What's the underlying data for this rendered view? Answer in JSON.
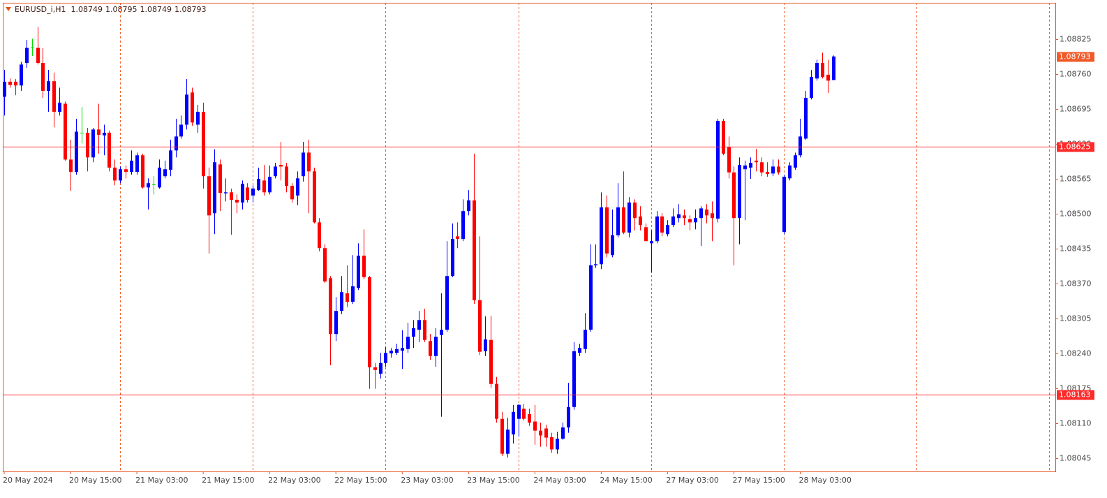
{
  "chart_data": {
    "type": "candlestick",
    "title": "EURUSD_i,H1",
    "categories": [
      "20 May 2024",
      null,
      null,
      null,
      null,
      null,
      null,
      null,
      null,
      null,
      null,
      null,
      "20 May 15:00",
      null,
      null,
      null,
      null,
      null,
      null,
      null,
      null,
      null,
      null,
      null,
      "21 May 03:00",
      null,
      null,
      null,
      null,
      null,
      null,
      null,
      null,
      null,
      null,
      null,
      "21 May 15:00",
      null,
      null,
      null,
      null,
      null,
      null,
      null,
      null,
      null,
      null,
      null,
      "22 May 03:00",
      null,
      null,
      null,
      null,
      null,
      null,
      null,
      null,
      null,
      null,
      null,
      "22 May 15:00",
      null,
      null,
      null,
      null,
      null,
      null,
      null,
      null,
      null,
      null,
      null,
      "23 May 03:00",
      null,
      null,
      null,
      null,
      null,
      null,
      null,
      null,
      null,
      null,
      null,
      "23 May 15:00",
      null,
      null,
      null,
      null,
      null,
      null,
      null,
      null,
      null,
      null,
      null,
      "24 May 03:00",
      null,
      null,
      null,
      null,
      null,
      null,
      null,
      null,
      null,
      null,
      null,
      "24 May 15:00",
      null,
      null,
      null,
      null,
      null,
      null,
      null,
      null,
      null,
      null,
      null,
      "27 May 03:00",
      null,
      null,
      null,
      null,
      null,
      null,
      null,
      null,
      null,
      null,
      null,
      "27 May 15:00",
      null,
      null,
      null,
      null,
      null,
      null,
      null,
      null,
      null,
      null,
      null,
      "28 May 03:00",
      null,
      null,
      null,
      null,
      null,
      null
    ],
    "open": [
      1.08718,
      1.08746,
      1.08746,
      1.08739,
      1.08781,
      1.08811,
      1.08809,
      1.08781,
      1.08729,
      1.08747,
      1.0869,
      1.08705,
      1.08601,
      1.08578,
      1.08651,
      1.08651,
      1.08605,
      1.08657,
      1.08646,
      1.08651,
      1.08586,
      1.08562,
      1.08583,
      1.08578,
      1.08578,
      1.08609,
      1.08549,
      1.08555,
      1.08549,
      1.0857,
      1.08582,
      1.08618,
      1.08644,
      1.08666,
      1.08726,
      1.08666,
      1.0869,
      1.0857,
      1.08501,
      1.08592,
      1.08538,
      1.0854,
      1.08526,
      1.08521,
      1.08549,
      1.08534,
      1.08544,
      1.08562,
      1.0854,
      1.0857,
      1.08591,
      1.08588,
      1.08552,
      1.08534,
      1.0857,
      1.08614,
      1.08579,
      1.08484,
      1.08436,
      1.0838,
      1.08276,
      1.08319,
      1.08352,
      1.08336,
      1.08362,
      1.08422,
      1.08382,
      1.08214,
      1.08202,
      1.08222,
      1.0824,
      1.08241,
      1.08245,
      1.08248,
      1.08271,
      1.08284,
      1.08302,
      1.08263,
      1.08235,
      1.08274,
      1.08284,
      1.08384,
      1.08458,
      1.08453,
      1.08505,
      1.08525,
      1.08339,
      1.08244,
      1.08265,
      1.08183,
      1.08118,
      1.08053,
      1.08089,
      1.08118,
      1.08137,
      1.08127,
      1.08113,
      1.08096,
      1.081,
      1.08084,
      1.08061,
      1.08081,
      1.08102,
      1.0814,
      1.08241,
      1.08248,
      1.08284,
      1.08404,
      1.08406,
      1.08512,
      1.08423,
      1.0846,
      1.08512,
      1.08465,
      1.08521,
      1.08495,
      1.08475,
      1.08445,
      1.08449,
      1.08495,
      1.08462,
      1.08479,
      1.08492,
      1.08497,
      1.0849,
      1.08484,
      1.08492,
      1.08508,
      1.08501,
      1.08491,
      1.08673,
      1.08625,
      1.08577,
      1.08492,
      1.08583,
      1.08586,
      1.08599,
      1.08596,
      1.08578,
      1.08575,
      1.08588,
      1.08466,
      1.08566,
      1.08586,
      1.08609,
      1.0864,
      1.08716,
      1.08752,
      1.08781,
      1.08759,
      1.08749
    ],
    "high": [
      1.08768,
      1.08752,
      1.08751,
      1.08783,
      1.08824,
      1.08826,
      1.08848,
      1.08809,
      1.08768,
      1.08763,
      1.08735,
      1.08709,
      1.08638,
      1.08677,
      1.08699,
      1.0866,
      1.0866,
      1.08705,
      1.08666,
      1.08655,
      1.08601,
      1.08588,
      1.0859,
      1.08618,
      1.08614,
      1.08612,
      1.08566,
      1.0857,
      1.08601,
      1.08599,
      1.08638,
      1.08677,
      1.08683,
      1.08751,
      1.08735,
      1.08703,
      1.08707,
      1.08586,
      1.0862,
      1.08601,
      1.08566,
      1.08547,
      1.08536,
      1.08562,
      1.08557,
      1.08553,
      1.08586,
      1.08591,
      1.0859,
      1.08595,
      1.08634,
      1.08595,
      1.08557,
      1.08579,
      1.08634,
      1.08638,
      1.08586,
      1.08492,
      1.08443,
      1.08384,
      1.08345,
      1.08384,
      1.08404,
      1.08423,
      1.08445,
      1.08471,
      1.08384,
      1.08222,
      1.08241,
      1.08252,
      1.0825,
      1.08258,
      1.08283,
      1.08297,
      1.08302,
      1.08319,
      1.08323,
      1.08276,
      1.08287,
      1.08352,
      1.08449,
      1.08482,
      1.08484,
      1.08527,
      1.08544,
      1.08612,
      1.08458,
      1.08309,
      1.0831,
      1.08196,
      1.08131,
      1.0812,
      1.08144,
      1.08146,
      1.08146,
      1.08137,
      1.08144,
      1.08111,
      1.08107,
      1.08092,
      1.08094,
      1.08111,
      1.08185,
      1.08261,
      1.08258,
      1.08315,
      1.08443,
      1.08443,
      1.0854,
      1.08534,
      1.08508,
      1.08557,
      1.08579,
      1.08531,
      1.08527,
      1.08514,
      1.08482,
      1.08469,
      1.08505,
      1.08501,
      1.08488,
      1.0851,
      1.08518,
      1.08508,
      1.08497,
      1.08508,
      1.08514,
      1.08518,
      1.08523,
      1.08677,
      1.08677,
      1.08644,
      1.08588,
      1.08605,
      1.08599,
      1.08605,
      1.08621,
      1.08605,
      1.08596,
      1.08601,
      1.08601,
      1.08573,
      1.08596,
      1.08614,
      1.08677,
      1.08729,
      1.08768,
      1.08787,
      1.088,
      1.08787,
      1.08795
    ],
    "low": [
      1.08683,
      1.08735,
      1.08721,
      1.08729,
      1.08772,
      1.08794,
      1.08778,
      1.08716,
      1.0869,
      1.08661,
      1.08683,
      1.08599,
      1.08543,
      1.08573,
      1.08631,
      1.08579,
      1.08596,
      1.08612,
      1.08609,
      1.08579,
      1.08553,
      1.08557,
      1.08566,
      1.08573,
      1.08573,
      1.08547,
      1.08508,
      1.08536,
      1.08547,
      1.08566,
      1.0857,
      1.08605,
      1.0864,
      1.08657,
      1.08664,
      1.08651,
      1.08547,
      1.08426,
      1.08462,
      1.08505,
      1.08523,
      1.08461,
      1.08501,
      1.08508,
      1.08521,
      1.08521,
      1.08543,
      1.08534,
      1.08536,
      1.08566,
      1.08562,
      1.0854,
      1.08521,
      1.08516,
      1.0856,
      1.08501,
      1.08482,
      1.0843,
      1.08371,
      1.08218,
      1.08263,
      1.08313,
      1.08326,
      1.08332,
      1.08358,
      1.08378,
      1.08174,
      1.08174,
      1.08193,
      1.08215,
      1.08232,
      1.08237,
      1.08211,
      1.08241,
      1.0825,
      1.08261,
      1.08261,
      1.08228,
      1.08215,
      1.08122,
      1.0828,
      1.08382,
      1.08436,
      1.08449,
      1.08497,
      1.08332,
      1.08237,
      1.08235,
      1.08176,
      1.08111,
      1.08049,
      1.08046,
      1.08072,
      1.08085,
      1.08115,
      1.08105,
      1.0807,
      1.08066,
      1.08066,
      1.08055,
      1.08053,
      1.08079,
      1.08092,
      1.08135,
      1.08235,
      1.08241,
      1.0828,
      1.08399,
      1.08397,
      1.08419,
      1.08419,
      1.08456,
      1.08462,
      1.08456,
      1.08469,
      1.08469,
      1.08449,
      1.08391,
      1.08445,
      1.08458,
      1.08458,
      1.08475,
      1.08484,
      1.08479,
      1.08469,
      1.08471,
      1.0844,
      1.08482,
      1.08449,
      1.08484,
      1.08609,
      1.08566,
      1.08404,
      1.08443,
      1.08488,
      1.08565,
      1.08579,
      1.0857,
      1.08569,
      1.0857,
      1.08573,
      1.08462,
      1.08562,
      1.08582,
      1.08605,
      1.08638,
      1.08713,
      1.08748,
      1.08752,
      1.08725,
      1.08749
    ],
    "close": [
      1.08746,
      1.0874,
      1.08739,
      1.08778,
      1.08809,
      1.08811,
      1.08781,
      1.08729,
      1.08747,
      1.0869,
      1.08707,
      1.08601,
      1.08578,
      1.08653,
      1.08651,
      1.08605,
      1.08657,
      1.08647,
      1.08651,
      1.08586,
      1.08562,
      1.08583,
      1.08578,
      1.08599,
      1.08609,
      1.08549,
      1.08557,
      1.08555,
      1.08586,
      1.08583,
      1.08618,
      1.08644,
      1.08666,
      1.08722,
      1.0867,
      1.0869,
      1.0857,
      1.08497,
      1.08596,
      1.08539,
      1.0854,
      1.08526,
      1.08521,
      1.08556,
      1.08526,
      1.08547,
      1.08565,
      1.0854,
      1.08569,
      1.08588,
      1.08588,
      1.08552,
      1.08527,
      1.08566,
      1.08614,
      1.08579,
      1.08484,
      1.08436,
      1.08374,
      1.08276,
      1.08319,
      1.08354,
      1.08336,
      1.08365,
      1.08422,
      1.08382,
      1.08214,
      1.08209,
      1.08222,
      1.08241,
      1.08245,
      1.08248,
      1.0825,
      1.08271,
      1.08287,
      1.08302,
      1.08265,
      1.08235,
      1.08271,
      1.08284,
      1.08384,
      1.08453,
      1.08453,
      1.08505,
      1.08525,
      1.08339,
      1.08243,
      1.08266,
      1.08183,
      1.08118,
      1.08053,
      1.08098,
      1.08131,
      1.08144,
      1.08118,
      1.08111,
      1.08096,
      1.08087,
      1.08083,
      1.08061,
      1.08081,
      1.08102,
      1.0814,
      1.08244,
      1.0825,
      1.08284,
      1.08404,
      1.08406,
      1.08512,
      1.08426,
      1.0846,
      1.08512,
      1.08465,
      1.08521,
      1.08492,
      1.08479,
      1.08449,
      1.08449,
      1.08495,
      1.08465,
      1.08479,
      1.08495,
      1.08499,
      1.08492,
      1.08484,
      1.08492,
      1.0851,
      1.08497,
      1.08492,
      1.08673,
      1.08612,
      1.08577,
      1.08492,
      1.08591,
      1.0859,
      1.08595,
      1.08596,
      1.08577,
      1.08574,
      1.08588,
      1.08577,
      1.08569,
      1.0859,
      1.08609,
      1.08644,
      1.08716,
      1.08755,
      1.08781,
      1.08755,
      1.08748,
      1.08793
    ],
    "ylim": [
      1.0802,
      1.08893
    ],
    "yticks": [
      1.08825,
      {
        "value": 1.0876,
        "label": "1.08760"
      },
      1.08695,
      {
        "value": 1.0863,
        "label": "1.08630"
      },
      1.08565,
      {
        "value": 1.085,
        "label": "1.08500"
      },
      1.08435,
      {
        "value": 1.0837,
        "label": "1.08370"
      },
      1.08305,
      {
        "value": 1.0824,
        "label": "1.08240"
      },
      1.08175,
      {
        "value": 1.0811,
        "label": "1.08110"
      },
      1.08045
    ],
    "hlines": [
      1.08625,
      1.08163
    ],
    "grid": false,
    "period_separators": true,
    "colors": {
      "up": "#0000ff",
      "down": "#ff0000",
      "doji": "#00dd00",
      "axis": "#e8501c",
      "separator": "#f0602a",
      "hline": "#ff2a2a",
      "price_label": "#f05a28"
    }
  }
}
